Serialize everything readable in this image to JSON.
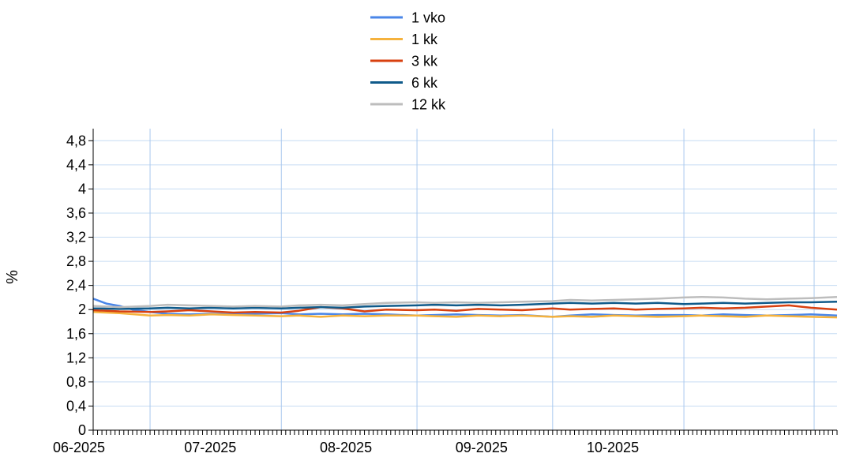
{
  "chart_data": {
    "type": "line",
    "title": "",
    "xlabel": "",
    "ylabel": "%",
    "legend_position": "top-center",
    "grid": true,
    "y_range": [
      0,
      5.0
    ],
    "y_ticks": [
      "0",
      "0,4",
      "0,8",
      "1,2",
      "1,6",
      "2",
      "2,4",
      "2,8",
      "3,2",
      "3,6",
      "4",
      "4,4",
      "4,8"
    ],
    "x_range": [
      "2025-05-19",
      "2025-11-05"
    ],
    "x_ticks": [
      {
        "date": "2025-06-01",
        "label": "06-2025"
      },
      {
        "date": "2025-07-01",
        "label": "07-2025"
      },
      {
        "date": "2025-08-01",
        "label": "08-2025"
      },
      {
        "date": "2025-09-01",
        "label": "09-2025"
      },
      {
        "date": "2025-10-01",
        "label": "10-2025"
      }
    ],
    "series": [
      {
        "name": "1 vko",
        "color": "#4a86e8",
        "points": [
          [
            "2025-05-19",
            2.18
          ],
          [
            "2025-05-22",
            2.1
          ],
          [
            "2025-05-25",
            2.06
          ],
          [
            "2025-05-28",
            2.0
          ],
          [
            "2025-06-01",
            1.96
          ],
          [
            "2025-06-05",
            1.93
          ],
          [
            "2025-06-10",
            1.92
          ],
          [
            "2025-06-15",
            1.93
          ],
          [
            "2025-06-20",
            1.92
          ],
          [
            "2025-06-25",
            1.93
          ],
          [
            "2025-07-01",
            1.94
          ],
          [
            "2025-07-05",
            1.92
          ],
          [
            "2025-07-10",
            1.93
          ],
          [
            "2025-07-15",
            1.92
          ],
          [
            "2025-07-20",
            1.93
          ],
          [
            "2025-07-25",
            1.92
          ],
          [
            "2025-08-01",
            1.9
          ],
          [
            "2025-08-05",
            1.91
          ],
          [
            "2025-08-10",
            1.92
          ],
          [
            "2025-08-15",
            1.91
          ],
          [
            "2025-08-20",
            1.9
          ],
          [
            "2025-08-25",
            1.91
          ],
          [
            "2025-09-01",
            1.88
          ],
          [
            "2025-09-05",
            1.9
          ],
          [
            "2025-09-10",
            1.92
          ],
          [
            "2025-09-15",
            1.91
          ],
          [
            "2025-09-20",
            1.9
          ],
          [
            "2025-09-25",
            1.91
          ],
          [
            "2025-10-01",
            1.91
          ],
          [
            "2025-10-05",
            1.9
          ],
          [
            "2025-10-10",
            1.92
          ],
          [
            "2025-10-15",
            1.91
          ],
          [
            "2025-10-20",
            1.9
          ],
          [
            "2025-10-25",
            1.91
          ],
          [
            "2025-10-30",
            1.92
          ],
          [
            "2025-11-05",
            1.9
          ]
        ]
      },
      {
        "name": "1 kk",
        "color": "#f5b23d",
        "points": [
          [
            "2025-05-19",
            1.96
          ],
          [
            "2025-05-25",
            1.94
          ],
          [
            "2025-06-01",
            1.9
          ],
          [
            "2025-06-05",
            1.91
          ],
          [
            "2025-06-10",
            1.9
          ],
          [
            "2025-06-15",
            1.92
          ],
          [
            "2025-06-20",
            1.91
          ],
          [
            "2025-06-25",
            1.9
          ],
          [
            "2025-07-01",
            1.89
          ],
          [
            "2025-07-05",
            1.9
          ],
          [
            "2025-07-10",
            1.88
          ],
          [
            "2025-07-15",
            1.9
          ],
          [
            "2025-07-20",
            1.89
          ],
          [
            "2025-07-25",
            1.9
          ],
          [
            "2025-08-01",
            1.9
          ],
          [
            "2025-08-05",
            1.89
          ],
          [
            "2025-08-10",
            1.88
          ],
          [
            "2025-08-15",
            1.9
          ],
          [
            "2025-08-20",
            1.89
          ],
          [
            "2025-08-25",
            1.9
          ],
          [
            "2025-09-01",
            1.88
          ],
          [
            "2025-09-05",
            1.89
          ],
          [
            "2025-09-10",
            1.88
          ],
          [
            "2025-09-15",
            1.9
          ],
          [
            "2025-09-20",
            1.89
          ],
          [
            "2025-09-25",
            1.88
          ],
          [
            "2025-10-01",
            1.89
          ],
          [
            "2025-10-05",
            1.9
          ],
          [
            "2025-10-10",
            1.89
          ],
          [
            "2025-10-15",
            1.88
          ],
          [
            "2025-10-20",
            1.9
          ],
          [
            "2025-10-25",
            1.89
          ],
          [
            "2025-10-30",
            1.88
          ],
          [
            "2025-11-05",
            1.87
          ]
        ]
      },
      {
        "name": "3 kk",
        "color": "#d8400f",
        "points": [
          [
            "2025-05-19",
            1.99
          ],
          [
            "2025-05-25",
            1.97
          ],
          [
            "2025-06-01",
            1.96
          ],
          [
            "2025-06-05",
            1.97
          ],
          [
            "2025-06-10",
            1.99
          ],
          [
            "2025-06-15",
            1.97
          ],
          [
            "2025-06-20",
            1.95
          ],
          [
            "2025-06-25",
            1.96
          ],
          [
            "2025-07-01",
            1.95
          ],
          [
            "2025-07-05",
            1.98
          ],
          [
            "2025-07-10",
            2.04
          ],
          [
            "2025-07-15",
            2.02
          ],
          [
            "2025-07-20",
            1.97
          ],
          [
            "2025-07-25",
            2.0
          ],
          [
            "2025-08-01",
            1.99
          ],
          [
            "2025-08-05",
            2.0
          ],
          [
            "2025-08-10",
            1.98
          ],
          [
            "2025-08-15",
            2.01
          ],
          [
            "2025-08-20",
            2.0
          ],
          [
            "2025-08-25",
            1.99
          ],
          [
            "2025-09-01",
            2.02
          ],
          [
            "2025-09-05",
            2.0
          ],
          [
            "2025-09-10",
            2.01
          ],
          [
            "2025-09-15",
            2.02
          ],
          [
            "2025-09-20",
            2.0
          ],
          [
            "2025-09-25",
            2.01
          ],
          [
            "2025-10-01",
            2.02
          ],
          [
            "2025-10-05",
            2.03
          ],
          [
            "2025-10-10",
            2.02
          ],
          [
            "2025-10-15",
            2.03
          ],
          [
            "2025-10-20",
            2.05
          ],
          [
            "2025-10-25",
            2.07
          ],
          [
            "2025-10-30",
            2.03
          ],
          [
            "2025-11-05",
            2.0
          ]
        ]
      },
      {
        "name": "6 kk",
        "color": "#0f5a8a",
        "points": [
          [
            "2025-05-19",
            2.02
          ],
          [
            "2025-05-25",
            2.01
          ],
          [
            "2025-06-01",
            2.02
          ],
          [
            "2025-06-05",
            2.03
          ],
          [
            "2025-06-10",
            2.02
          ],
          [
            "2025-06-15",
            2.03
          ],
          [
            "2025-06-20",
            2.02
          ],
          [
            "2025-06-25",
            2.03
          ],
          [
            "2025-07-01",
            2.02
          ],
          [
            "2025-07-05",
            2.03
          ],
          [
            "2025-07-10",
            2.04
          ],
          [
            "2025-07-15",
            2.03
          ],
          [
            "2025-07-20",
            2.05
          ],
          [
            "2025-07-25",
            2.06
          ],
          [
            "2025-08-01",
            2.07
          ],
          [
            "2025-08-05",
            2.08
          ],
          [
            "2025-08-10",
            2.07
          ],
          [
            "2025-08-15",
            2.08
          ],
          [
            "2025-08-20",
            2.07
          ],
          [
            "2025-08-25",
            2.08
          ],
          [
            "2025-09-01",
            2.1
          ],
          [
            "2025-09-05",
            2.11
          ],
          [
            "2025-09-10",
            2.1
          ],
          [
            "2025-09-15",
            2.11
          ],
          [
            "2025-09-20",
            2.1
          ],
          [
            "2025-09-25",
            2.11
          ],
          [
            "2025-10-01",
            2.09
          ],
          [
            "2025-10-05",
            2.1
          ],
          [
            "2025-10-10",
            2.11
          ],
          [
            "2025-10-15",
            2.1
          ],
          [
            "2025-10-20",
            2.11
          ],
          [
            "2025-10-25",
            2.12
          ],
          [
            "2025-10-30",
            2.12
          ],
          [
            "2025-11-05",
            2.13
          ]
        ]
      },
      {
        "name": "12 kk",
        "color": "#bdbdbd",
        "points": [
          [
            "2025-05-19",
            2.06
          ],
          [
            "2025-05-25",
            2.04
          ],
          [
            "2025-06-01",
            2.06
          ],
          [
            "2025-06-05",
            2.08
          ],
          [
            "2025-06-10",
            2.07
          ],
          [
            "2025-06-15",
            2.06
          ],
          [
            "2025-06-20",
            2.05
          ],
          [
            "2025-06-25",
            2.06
          ],
          [
            "2025-07-01",
            2.05
          ],
          [
            "2025-07-05",
            2.07
          ],
          [
            "2025-07-10",
            2.08
          ],
          [
            "2025-07-15",
            2.07
          ],
          [
            "2025-07-20",
            2.09
          ],
          [
            "2025-07-25",
            2.11
          ],
          [
            "2025-08-01",
            2.12
          ],
          [
            "2025-08-05",
            2.11
          ],
          [
            "2025-08-10",
            2.12
          ],
          [
            "2025-08-15",
            2.11
          ],
          [
            "2025-08-20",
            2.12
          ],
          [
            "2025-08-25",
            2.13
          ],
          [
            "2025-09-01",
            2.14
          ],
          [
            "2025-09-05",
            2.16
          ],
          [
            "2025-09-10",
            2.15
          ],
          [
            "2025-09-15",
            2.16
          ],
          [
            "2025-09-20",
            2.17
          ],
          [
            "2025-09-25",
            2.18
          ],
          [
            "2025-10-01",
            2.2
          ],
          [
            "2025-10-05",
            2.21
          ],
          [
            "2025-10-10",
            2.2
          ],
          [
            "2025-10-15",
            2.18
          ],
          [
            "2025-10-20",
            2.17
          ],
          [
            "2025-10-25",
            2.18
          ],
          [
            "2025-10-30",
            2.19
          ],
          [
            "2025-11-05",
            2.21
          ]
        ]
      }
    ]
  }
}
